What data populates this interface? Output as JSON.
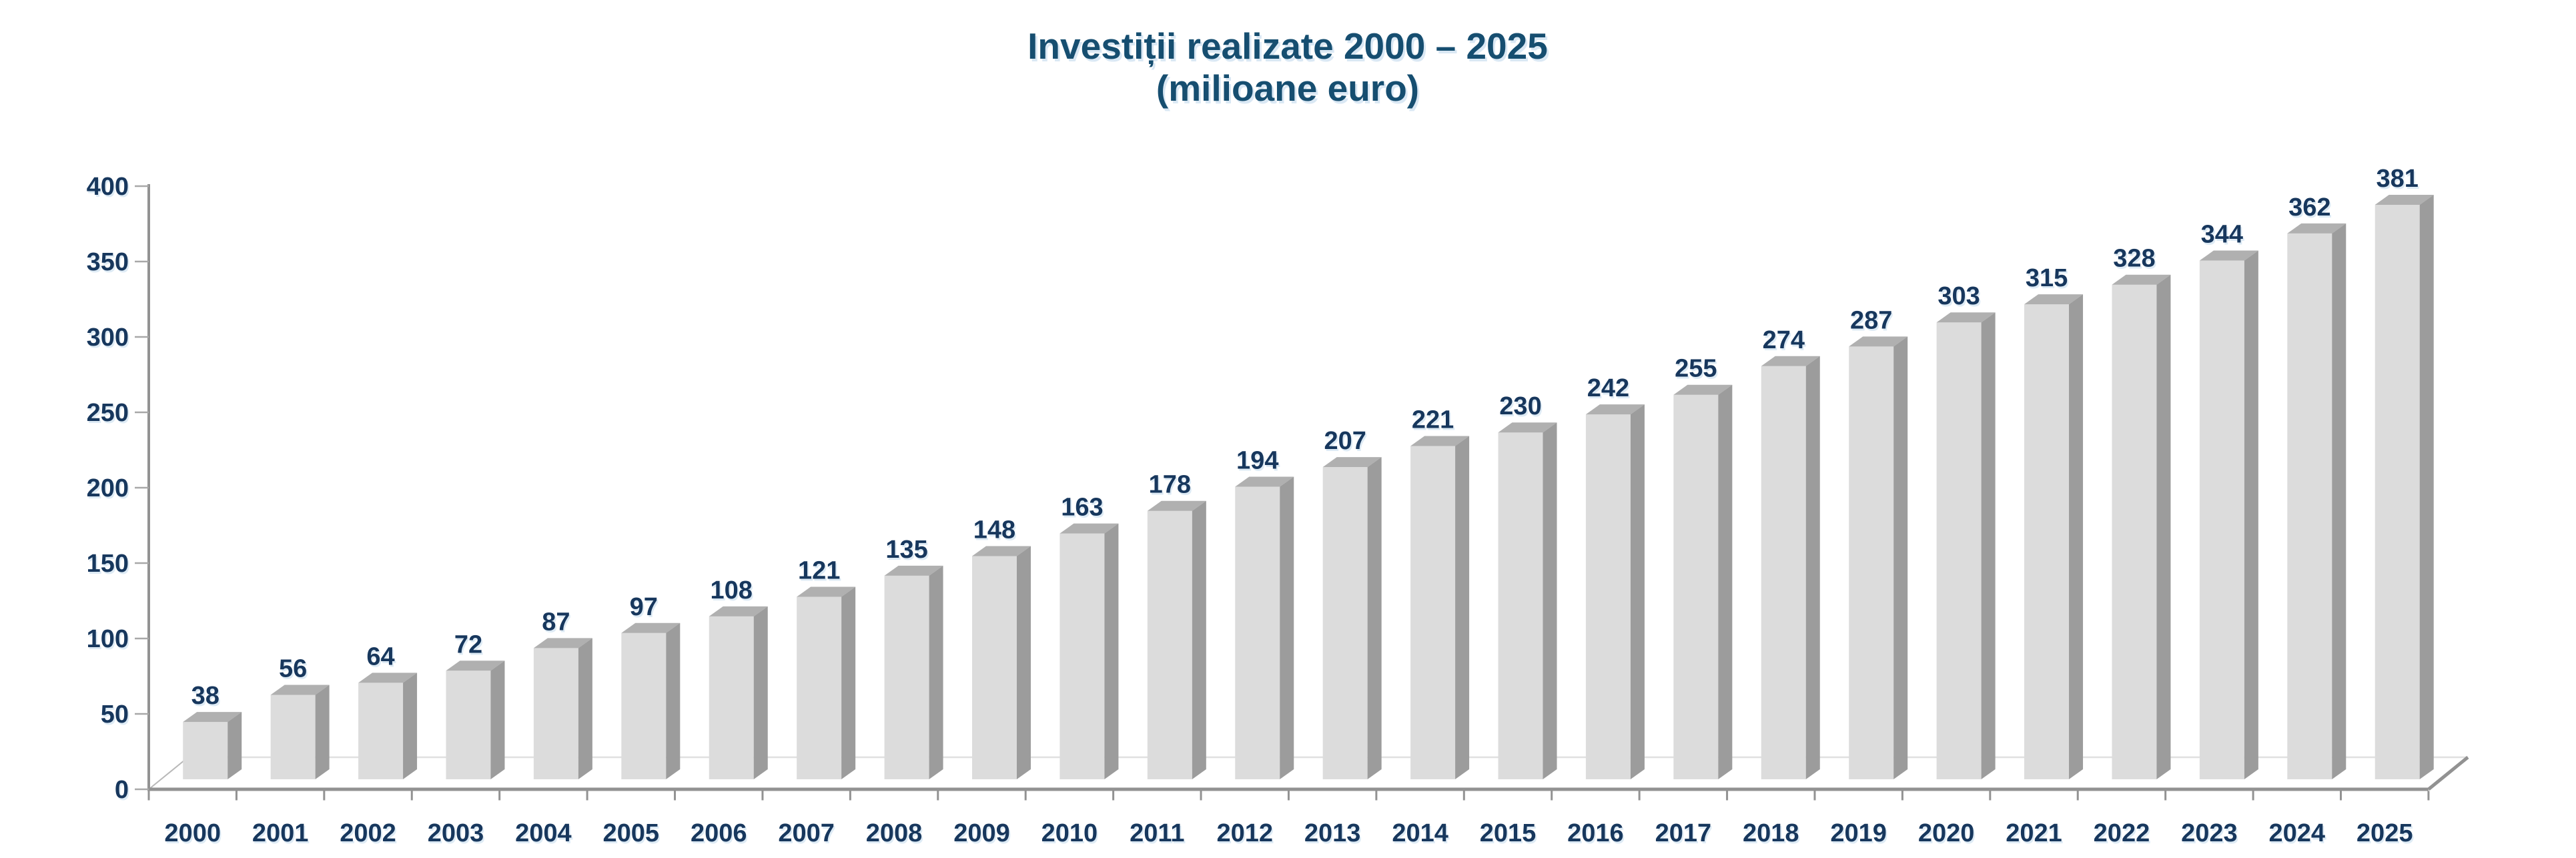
{
  "title": {
    "line1": "Investiții realizate 2000 – 2025",
    "line2": "(milioane euro)"
  },
  "chart_data": {
    "type": "bar",
    "style_3d": true,
    "title": "Investiții realizate 2000 – 2025 (milioane euro)",
    "xlabel": "",
    "ylabel": "",
    "categories": [
      "2000",
      "2001",
      "2002",
      "2003",
      "2004",
      "2005",
      "2006",
      "2007",
      "2008",
      "2009",
      "2010",
      "2011",
      "2012",
      "2013",
      "2014",
      "2015",
      "2016",
      "2017",
      "2018",
      "2019",
      "2020",
      "2021",
      "2022",
      "2023",
      "2024",
      "2025"
    ],
    "values": [
      38,
      56,
      64,
      72,
      87,
      97,
      108,
      121,
      135,
      148,
      163,
      178,
      194,
      207,
      221,
      230,
      242,
      255,
      274,
      287,
      303,
      315,
      328,
      344,
      362,
      381
    ],
    "data_labels_shown": true,
    "ylim": [
      0,
      400
    ],
    "ytick_step": 50,
    "yticks": [
      0,
      50,
      100,
      150,
      200,
      250,
      300,
      350,
      400
    ],
    "grid": false,
    "legend": null,
    "colors": {
      "bar_front": "#DCDCDC",
      "bar_top": "#B0B0B0",
      "bar_side": "#9C9C9C",
      "axis_line": "#929292",
      "y_tick": "#A8A8A8",
      "floor_back_line": "#E0E0E0",
      "floor_left_line": "#B8B8B8",
      "label_text": "#17375D",
      "title_text": "#164E70",
      "background": "#FFFFFF"
    }
  }
}
